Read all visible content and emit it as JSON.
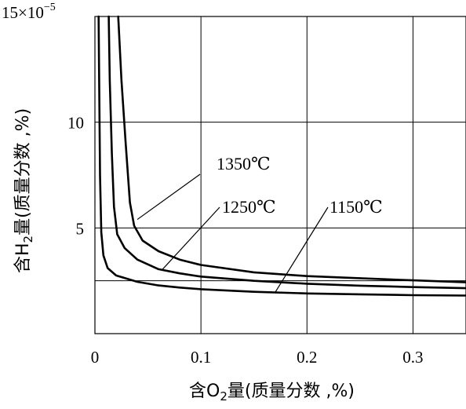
{
  "chart_data": {
    "type": "line",
    "xlabel": {
      "pre": "含O",
      "sub": "2",
      "post": "量(质量分数 ,%)"
    },
    "ylabel": {
      "pre": "含H",
      "sub": "2",
      "post": "量(质量分数 ,%)"
    },
    "xlim": [
      0,
      0.35
    ],
    "ylim": [
      0,
      15
    ],
    "x_ticks": [
      {
        "value": 0,
        "label": "0"
      },
      {
        "value": 0.1,
        "label": "0.1"
      },
      {
        "value": 0.2,
        "label": "0.2"
      },
      {
        "value": 0.3,
        "label": "0.3"
      }
    ],
    "y_ticks": [
      {
        "value": 5,
        "label": "5"
      },
      {
        "value": 10,
        "label": "10"
      }
    ],
    "y_top_label": {
      "value": 15,
      "base": "15×10",
      "exp": "−5"
    },
    "grid": true,
    "extra_hline": 2.5,
    "series": [
      {
        "name": "1350℃",
        "points": [
          [
            0.022,
            15.0
          ],
          [
            0.025,
            12.0
          ],
          [
            0.029,
            9.0
          ],
          [
            0.033,
            6.2
          ],
          [
            0.037,
            5.1
          ],
          [
            0.045,
            4.4
          ],
          [
            0.06,
            3.9
          ],
          [
            0.08,
            3.5
          ],
          [
            0.1,
            3.25
          ],
          [
            0.15,
            2.9
          ],
          [
            0.2,
            2.72
          ],
          [
            0.25,
            2.62
          ],
          [
            0.3,
            2.52
          ],
          [
            0.35,
            2.43
          ]
        ],
        "label_at": [
          0.04,
          5.4
        ]
      },
      {
        "name": "1250℃",
        "points": [
          [
            0.013,
            15.0
          ],
          [
            0.014,
            12.0
          ],
          [
            0.016,
            8.5
          ],
          [
            0.018,
            6.0
          ],
          [
            0.021,
            4.7
          ],
          [
            0.028,
            4.05
          ],
          [
            0.04,
            3.5
          ],
          [
            0.06,
            3.05
          ],
          [
            0.08,
            2.85
          ],
          [
            0.1,
            2.7
          ],
          [
            0.15,
            2.5
          ],
          [
            0.2,
            2.36
          ],
          [
            0.25,
            2.27
          ],
          [
            0.3,
            2.2
          ],
          [
            0.35,
            2.15
          ]
        ],
        "label_at": [
          0.063,
          3.0
        ]
      },
      {
        "name": "1150℃",
        "points": [
          [
            0.0035,
            15.0
          ],
          [
            0.004,
            12.0
          ],
          [
            0.0048,
            7.5
          ],
          [
            0.006,
            4.8
          ],
          [
            0.008,
            3.7
          ],
          [
            0.012,
            3.1
          ],
          [
            0.02,
            2.75
          ],
          [
            0.04,
            2.45
          ],
          [
            0.06,
            2.28
          ],
          [
            0.08,
            2.18
          ],
          [
            0.1,
            2.1
          ],
          [
            0.15,
            1.98
          ],
          [
            0.2,
            1.9
          ],
          [
            0.25,
            1.86
          ],
          [
            0.3,
            1.82
          ],
          [
            0.35,
            1.8
          ]
        ],
        "label_at": [
          0.17,
          1.95
        ]
      }
    ]
  }
}
